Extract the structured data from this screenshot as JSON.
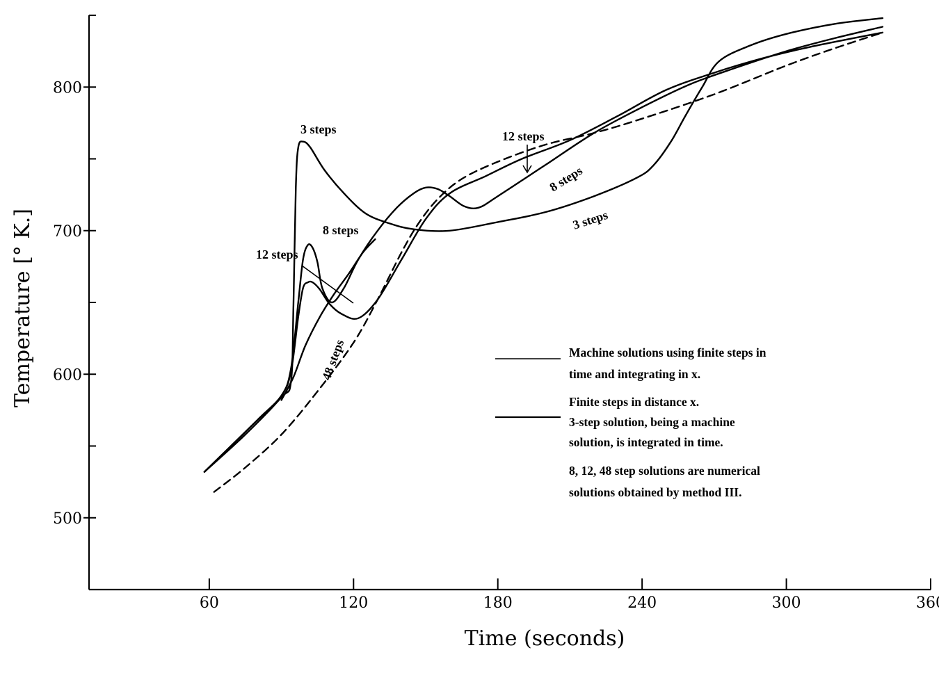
{
  "chart_data": {
    "type": "line",
    "title": "",
    "xlabel": "Time (seconds)",
    "ylabel": "Temperature [° K.]",
    "xlim": [
      10,
      360
    ],
    "ylim": [
      450,
      850
    ],
    "x_ticks": [
      60,
      120,
      180,
      240,
      300,
      360
    ],
    "y_ticks": [
      500,
      600,
      700,
      800
    ],
    "y_tick_labels": [
      "500",
      "600",
      "700",
      "800"
    ],
    "grid": false,
    "series": [
      {
        "id": "machine",
        "style": "dashed",
        "points": [
          [
            62,
            518
          ],
          [
            75,
            535
          ],
          [
            90,
            558
          ],
          [
            105,
            588
          ],
          [
            120,
            622
          ],
          [
            130,
            652
          ],
          [
            140,
            685
          ],
          [
            147,
            705
          ],
          [
            155,
            722
          ],
          [
            165,
            736
          ],
          [
            180,
            748
          ],
          [
            200,
            760
          ],
          [
            220,
            768
          ],
          [
            240,
            778
          ],
          [
            270,
            795
          ],
          [
            300,
            815
          ],
          [
            320,
            827
          ],
          [
            340,
            838
          ]
        ]
      },
      {
        "id": "3-step",
        "style": "solid",
        "points": [
          [
            58,
            532
          ],
          [
            75,
            558
          ],
          [
            90,
            584
          ],
          [
            94,
            595
          ],
          [
            95,
            648
          ],
          [
            96,
            730
          ],
          [
            97,
            758
          ],
          [
            99,
            762
          ],
          [
            102,
            758
          ],
          [
            108,
            742
          ],
          [
            116,
            726
          ],
          [
            125,
            712
          ],
          [
            135,
            705
          ],
          [
            145,
            701
          ],
          [
            160,
            700
          ],
          [
            180,
            706
          ],
          [
            200,
            713
          ],
          [
            220,
            724
          ],
          [
            238,
            737
          ],
          [
            245,
            746
          ],
          [
            252,
            762
          ],
          [
            258,
            780
          ],
          [
            265,
            800
          ],
          [
            272,
            818
          ],
          [
            285,
            829
          ],
          [
            300,
            837
          ],
          [
            320,
            844
          ],
          [
            340,
            848
          ]
        ]
      },
      {
        "id": "8-step",
        "style": "solid",
        "points": [
          [
            58,
            532
          ],
          [
            80,
            568
          ],
          [
            90,
            585
          ],
          [
            94,
            604
          ],
          [
            97,
            650
          ],
          [
            99,
            680
          ],
          [
            101,
            690
          ],
          [
            103,
            688
          ],
          [
            105,
            678
          ],
          [
            107,
            660
          ],
          [
            111,
            650
          ],
          [
            116,
            660
          ],
          [
            122,
            680
          ],
          [
            130,
            700
          ],
          [
            138,
            716
          ],
          [
            145,
            726
          ],
          [
            150,
            730
          ],
          [
            155,
            729
          ],
          [
            160,
            724
          ],
          [
            166,
            717
          ],
          [
            172,
            716
          ],
          [
            180,
            724
          ],
          [
            200,
            746
          ],
          [
            220,
            768
          ],
          [
            240,
            786
          ],
          [
            260,
            802
          ],
          [
            280,
            814
          ],
          [
            300,
            825
          ],
          [
            320,
            834
          ],
          [
            340,
            842
          ]
        ]
      },
      {
        "id": "12-step",
        "style": "solid",
        "points": [
          [
            58,
            532
          ],
          [
            80,
            568
          ],
          [
            90,
            585
          ],
          [
            94,
            602
          ],
          [
            97,
            640
          ],
          [
            99,
            660
          ],
          [
            101,
            664
          ],
          [
            103,
            664
          ],
          [
            106,
            659
          ],
          [
            110,
            649
          ],
          [
            115,
            642
          ],
          [
            122,
            639
          ],
          [
            130,
            652
          ],
          [
            140,
            680
          ],
          [
            150,
            708
          ],
          [
            160,
            726
          ],
          [
            175,
            738
          ],
          [
            190,
            750
          ],
          [
            210,
            763
          ],
          [
            230,
            780
          ],
          [
            250,
            798
          ],
          [
            270,
            810
          ],
          [
            290,
            820
          ],
          [
            310,
            828
          ],
          [
            340,
            838
          ]
        ]
      },
      {
        "id": "48-step",
        "style": "solid",
        "points": [
          [
            90,
            582
          ],
          [
            95,
            598
          ],
          [
            100,
            620
          ],
          [
            106,
            640
          ],
          [
            112,
            656
          ],
          [
            118,
            670
          ],
          [
            124,
            685
          ],
          [
            129,
            694
          ]
        ]
      }
    ],
    "annotations": [
      "3 steps",
      "8 steps",
      "12 steps",
      "48 steps",
      "12 steps",
      "8 steps",
      "3 steps"
    ],
    "legend": {
      "placement": "lower-right",
      "entries": [
        {
          "style": "dashed",
          "lines": [
            "Machine solutions using finite steps in",
            "time and integrating in x."
          ]
        },
        {
          "style": "solid",
          "lines": [
            "Finite steps in distance x.",
            "3-step solution, being a machine",
            "solution, is integrated in time."
          ]
        }
      ],
      "note": [
        "8, 12, 48 step solutions are numerical",
        "solutions obtained by method III."
      ]
    }
  }
}
